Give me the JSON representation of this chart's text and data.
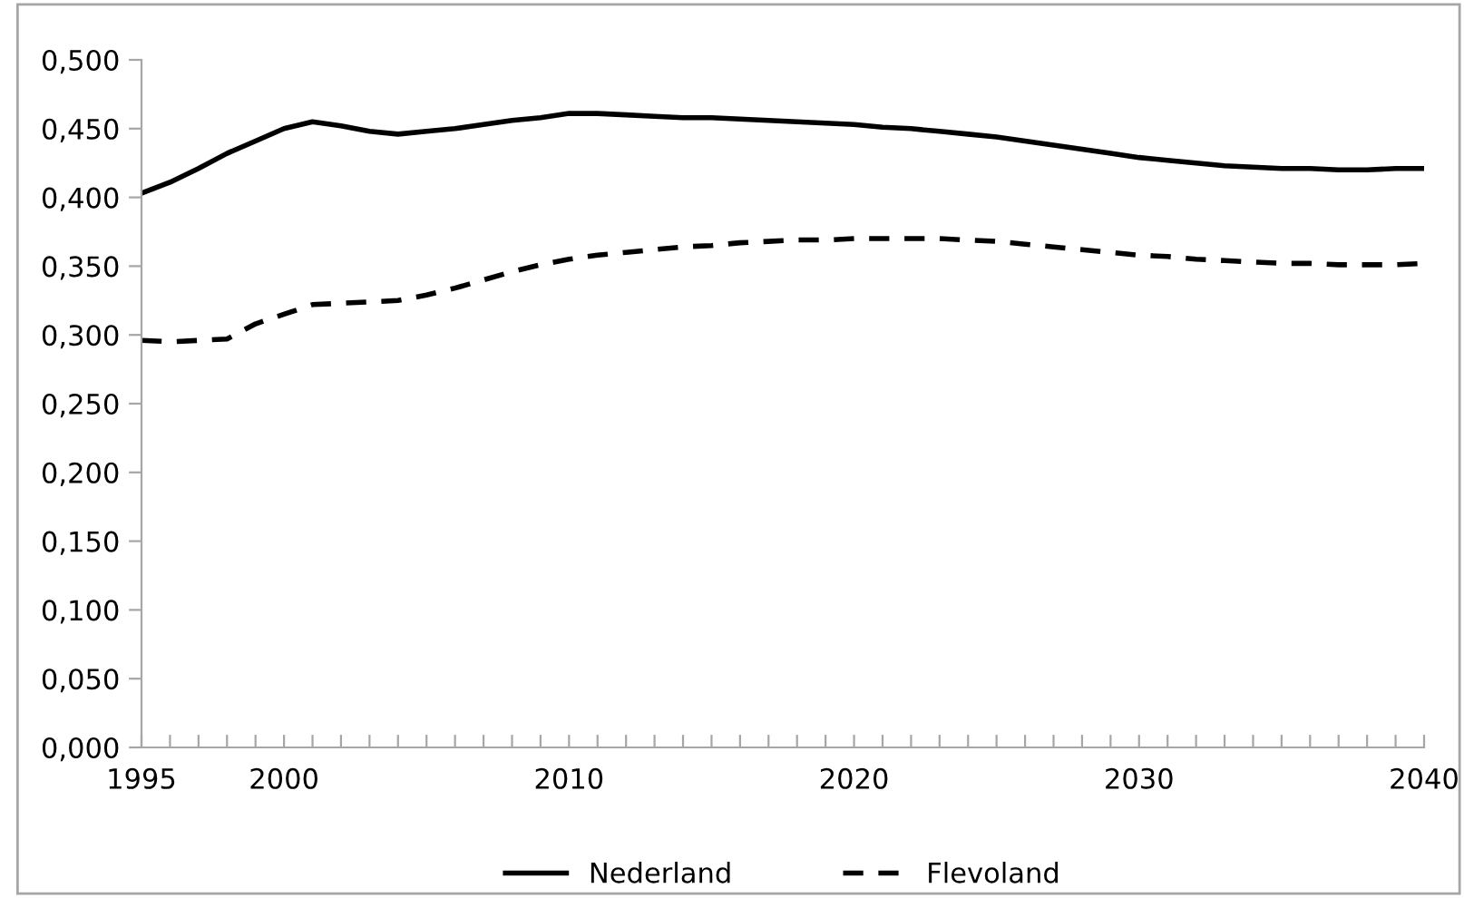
{
  "chart_data": {
    "type": "line",
    "x": [
      1995,
      1996,
      1997,
      1998,
      1999,
      2000,
      2001,
      2002,
      2003,
      2004,
      2005,
      2006,
      2007,
      2008,
      2009,
      2010,
      2011,
      2012,
      2013,
      2014,
      2015,
      2016,
      2017,
      2018,
      2019,
      2020,
      2021,
      2022,
      2023,
      2024,
      2025,
      2026,
      2027,
      2028,
      2029,
      2030,
      2031,
      2032,
      2033,
      2034,
      2035,
      2036,
      2037,
      2038,
      2039,
      2040
    ],
    "series": [
      {
        "name": "Nederland",
        "color": "#000000",
        "line_style": "solid",
        "values": [
          0.403,
          0.411,
          0.421,
          0.432,
          0.441,
          0.45,
          0.455,
          0.452,
          0.448,
          0.446,
          0.448,
          0.45,
          0.453,
          0.456,
          0.458,
          0.461,
          0.461,
          0.46,
          0.459,
          0.458,
          0.458,
          0.457,
          0.456,
          0.455,
          0.454,
          0.453,
          0.451,
          0.45,
          0.448,
          0.446,
          0.444,
          0.441,
          0.438,
          0.435,
          0.432,
          0.429,
          0.427,
          0.425,
          0.423,
          0.422,
          0.421,
          0.421,
          0.42,
          0.42,
          0.421,
          0.421
        ]
      },
      {
        "name": "Flevoland",
        "color": "#000000",
        "line_style": "dashed",
        "values": [
          0.296,
          0.295,
          0.296,
          0.297,
          0.308,
          0.315,
          0.322,
          0.323,
          0.324,
          0.325,
          0.329,
          0.334,
          0.34,
          0.346,
          0.351,
          0.355,
          0.358,
          0.36,
          0.362,
          0.364,
          0.365,
          0.367,
          0.368,
          0.369,
          0.369,
          0.37,
          0.37,
          0.37,
          0.37,
          0.369,
          0.368,
          0.366,
          0.364,
          0.362,
          0.36,
          0.358,
          0.357,
          0.355,
          0.354,
          0.353,
          0.352,
          0.352,
          0.351,
          0.351,
          0.351,
          0.352
        ]
      }
    ],
    "xlim": [
      1995,
      2040
    ],
    "xticks": [
      1995,
      {
        "value": 1996,
        "label": null
      },
      {
        "value": 1997,
        "label": null
      },
      {
        "value": 1998,
        "label": null
      },
      {
        "value": 1999,
        "label": null
      },
      2000,
      {
        "value": 2001,
        "label": null
      },
      {
        "value": 2002,
        "label": null
      },
      {
        "value": 2003,
        "label": null
      },
      {
        "value": 2004,
        "label": null
      },
      {
        "value": 2005,
        "label": null
      },
      {
        "value": 2006,
        "label": null
      },
      {
        "value": 2007,
        "label": null
      },
      {
        "value": 2008,
        "label": null
      },
      {
        "value": 2009,
        "label": null
      },
      2010,
      {
        "value": 2011,
        "label": null
      },
      {
        "value": 2012,
        "label": null
      },
      {
        "value": 2013,
        "label": null
      },
      {
        "value": 2014,
        "label": null
      },
      {
        "value": 2015,
        "label": null
      },
      {
        "value": 2016,
        "label": null
      },
      {
        "value": 2017,
        "label": null
      },
      {
        "value": 2018,
        "label": null
      },
      {
        "value": 2019,
        "label": null
      },
      2020,
      {
        "value": 2021,
        "label": null
      },
      {
        "value": 2022,
        "label": null
      },
      {
        "value": 2023,
        "label": null
      },
      {
        "value": 2024,
        "label": null
      },
      {
        "value": 2025,
        "label": null
      },
      {
        "value": 2026,
        "label": null
      },
      {
        "value": 2027,
        "label": null
      },
      {
        "value": 2028,
        "label": null
      },
      {
        "value": 2029,
        "label": null
      },
      2030,
      {
        "value": 2031,
        "label": null
      },
      {
        "value": 2032,
        "label": null
      },
      {
        "value": 2033,
        "label": null
      },
      {
        "value": 2034,
        "label": null
      },
      {
        "value": 2035,
        "label": null
      },
      {
        "value": 2036,
        "label": null
      },
      {
        "value": 2037,
        "label": null
      },
      {
        "value": 2038,
        "label": null
      },
      {
        "value": 2039,
        "label": null
      },
      2040
    ],
    "ylim": [
      0,
      0.5
    ],
    "yticks": [
      {
        "value": 0,
        "label": "0,000"
      },
      {
        "value": 0.05,
        "label": "0,050"
      },
      {
        "value": 0.1,
        "label": "0,100"
      },
      {
        "value": 0.15,
        "label": "0,150"
      },
      {
        "value": 0.2,
        "label": "0,200"
      },
      {
        "value": 0.25,
        "label": "0,250"
      },
      {
        "value": 0.3,
        "label": "0,300"
      },
      {
        "value": 0.35,
        "label": "0,350"
      },
      {
        "value": 0.4,
        "label": "0,400"
      },
      {
        "value": 0.45,
        "label": "0,450"
      },
      {
        "value": 0.5,
        "label": "0,500"
      }
    ],
    "grid": false,
    "legend": "bottom"
  }
}
